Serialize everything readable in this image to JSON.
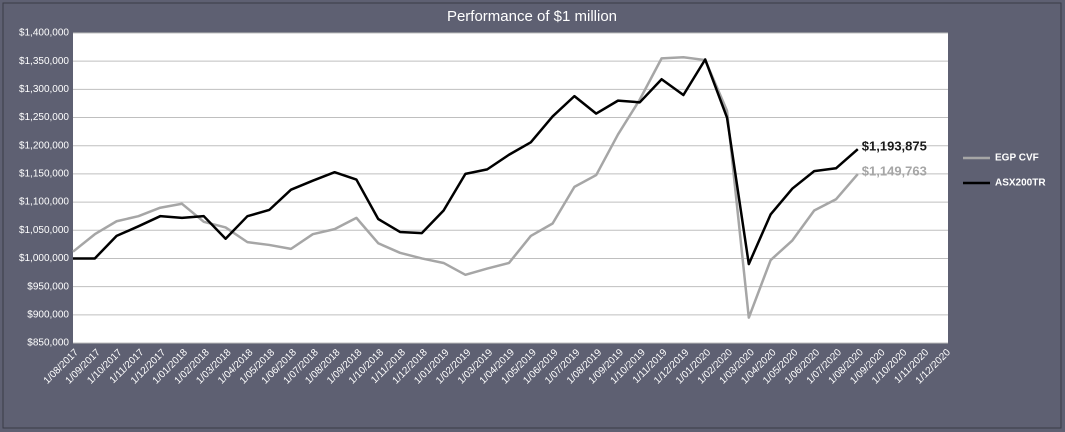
{
  "chart_data": {
    "type": "line",
    "title": "Performance of $1 million",
    "categories": [
      "1/08/2017",
      "1/09/2017",
      "1/10/2017",
      "1/11/2017",
      "1/12/2017",
      "1/01/2018",
      "1/02/2018",
      "1/03/2018",
      "1/04/2018",
      "1/05/2018",
      "1/06/2018",
      "1/07/2018",
      "1/08/2018",
      "1/09/2018",
      "1/10/2018",
      "1/11/2018",
      "1/12/2018",
      "1/01/2019",
      "1/02/2019",
      "1/03/2019",
      "1/04/2019",
      "1/05/2019",
      "1/06/2019",
      "1/07/2019",
      "1/08/2019",
      "1/09/2019",
      "1/10/2019",
      "1/11/2019",
      "1/12/2019",
      "1/01/2020",
      "1/02/2020",
      "1/03/2020",
      "1/04/2020",
      "1/05/2020",
      "1/06/2020",
      "1/07/2020",
      "1/08/2020",
      "1/09/2020",
      "1/10/2020",
      "1/11/2020",
      "1/12/2020"
    ],
    "series": [
      {
        "name": "EGP CVF",
        "color": "#a6a6a6",
        "values": [
          1012000,
          1043000,
          1066000,
          1075000,
          1090000,
          1097000,
          1065000,
          1055000,
          1029000,
          1024000,
          1017000,
          1043000,
          1052000,
          1072000,
          1027000,
          1010000,
          1000000,
          992000,
          971000,
          982000,
          992000,
          1040000,
          1062000,
          1127000,
          1148000,
          1220000,
          1282000,
          1355000,
          1357000,
          1352000,
          1262000,
          895000,
          997000,
          1032000,
          1085000,
          1105000,
          1149763,
          null,
          null,
          null,
          null
        ],
        "value_labels": [
          null,
          null,
          null,
          null,
          null,
          null,
          null,
          null,
          null,
          null,
          null,
          null,
          null,
          null,
          null,
          null,
          null,
          null,
          null,
          null,
          null,
          null,
          null,
          null,
          null,
          null,
          null,
          null,
          null,
          null,
          null,
          null,
          null,
          null,
          null,
          null,
          "$1,149,763",
          null,
          null,
          null,
          null
        ]
      },
      {
        "name": "ASX200TR",
        "color": "#000000",
        "values": [
          1000000,
          1000000,
          1040000,
          1057000,
          1075000,
          1072000,
          1075000,
          1035000,
          1075000,
          1086000,
          1122000,
          1138000,
          1153000,
          1140000,
          1070000,
          1047000,
          1045000,
          1085000,
          1150000,
          1158000,
          1184000,
          1206000,
          1252000,
          1288000,
          1257000,
          1280000,
          1277000,
          1318000,
          1290000,
          1353000,
          1250000,
          990000,
          1078000,
          1124000,
          1155000,
          1160000,
          1193875,
          null,
          null,
          null,
          null
        ],
        "value_labels": [
          null,
          null,
          null,
          null,
          null,
          null,
          null,
          null,
          null,
          null,
          null,
          null,
          null,
          null,
          null,
          null,
          null,
          null,
          null,
          null,
          null,
          null,
          null,
          null,
          null,
          null,
          null,
          null,
          null,
          null,
          null,
          null,
          null,
          null,
          null,
          null,
          "$1,193,875",
          null,
          null,
          null,
          null
        ]
      }
    ],
    "ylim": [
      850000,
      1400000
    ],
    "yticks": [
      {
        "value": 850000,
        "label": "$850,000"
      },
      {
        "value": 900000,
        "label": "$900,000"
      },
      {
        "value": 950000,
        "label": "$950,000"
      },
      {
        "value": 1000000,
        "label": "$1,000,000"
      },
      {
        "value": 1050000,
        "label": "$1,050,000"
      },
      {
        "value": 1100000,
        "label": "$1,100,000"
      },
      {
        "value": 1150000,
        "label": "$1,150,000"
      },
      {
        "value": 1200000,
        "label": "$1,200,000"
      },
      {
        "value": 1250000,
        "label": "$1,250,000"
      },
      {
        "value": 1300000,
        "label": "$1,300,000"
      },
      {
        "value": 1350000,
        "label": "$1,350,000"
      },
      {
        "value": 1400000,
        "label": "$1,400,000"
      }
    ],
    "grid": true,
    "legend": "right"
  }
}
